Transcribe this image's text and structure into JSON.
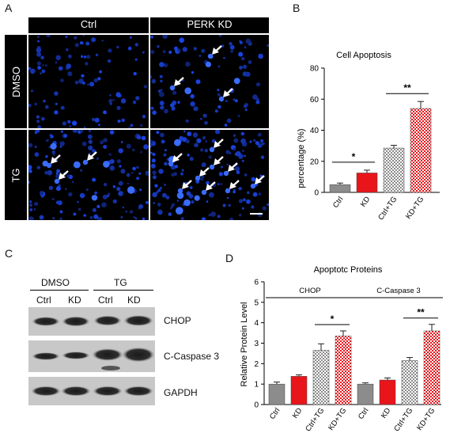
{
  "panels": {
    "A": "A",
    "B": "B",
    "C": "C",
    "D": "D"
  },
  "panel_a": {
    "col_headers": [
      "Ctrl",
      "PERK KD"
    ],
    "row_labels": [
      "DMSO",
      "TG"
    ]
  },
  "panel_c": {
    "group_labels": [
      "DMSO",
      "TG"
    ],
    "lane_labels": [
      "Ctrl",
      "KD",
      "Ctrl",
      "KD"
    ],
    "blot_labels": [
      "CHOP",
      "C-Caspase 3",
      "GAPDH"
    ]
  },
  "chart_data": [
    {
      "type": "bar",
      "title": "Cell Apoptosis",
      "ylabel": "percentage (%)",
      "xlabel": "",
      "ylim": [
        0,
        80
      ],
      "yticks": [
        "0",
        "20",
        "40",
        "60",
        "80"
      ],
      "categories": [
        "Ctrl",
        "KD",
        "Ctrl+TG",
        "KD+TG"
      ],
      "values": [
        5,
        12.5,
        28.5,
        54
      ],
      "errors": [
        1,
        1.8,
        1.8,
        4.5
      ],
      "bar_styles": [
        "solid-gray",
        "solid-red",
        "checker-gray",
        "checker-red"
      ],
      "colors": {
        "gray": "#8c8c8c",
        "red": "#e8151b"
      },
      "significance": [
        {
          "between": [
            "Ctrl",
            "KD"
          ],
          "label": "*"
        },
        {
          "between": [
            "Ctrl+TG",
            "KD+TG"
          ],
          "label": "**"
        }
      ]
    },
    {
      "type": "bar",
      "title": "Apoptotc Proteins",
      "ylabel": "Relative Protein Level",
      "xlabel": "",
      "ylim": [
        0,
        6
      ],
      "yticks": [
        "0",
        "1",
        "2",
        "3",
        "4",
        "5",
        "6"
      ],
      "groups": [
        {
          "name": "CHOP",
          "categories": [
            "Ctrl",
            "KD",
            "Ctrl+TG",
            "KD+TG"
          ],
          "values": [
            1.0,
            1.38,
            2.65,
            3.35
          ],
          "errors": [
            0.1,
            0.07,
            0.32,
            0.25
          ],
          "significance": {
            "between": [
              "Ctrl+TG",
              "KD+TG"
            ],
            "label": "*"
          }
        },
        {
          "name": "C-Caspase 3",
          "categories": [
            "Ctrl",
            "KD",
            "Ctrl+TG",
            "KD+TG"
          ],
          "values": [
            1.0,
            1.2,
            2.15,
            3.6
          ],
          "errors": [
            0.06,
            0.1,
            0.15,
            0.32
          ],
          "significance": {
            "between": [
              "Ctrl+TG",
              "KD+TG"
            ],
            "label": "**"
          }
        }
      ],
      "bar_styles": [
        "solid-gray",
        "solid-red",
        "checker-gray",
        "checker-red"
      ],
      "colors": {
        "gray": "#8c8c8c",
        "red": "#e8151b"
      }
    }
  ]
}
